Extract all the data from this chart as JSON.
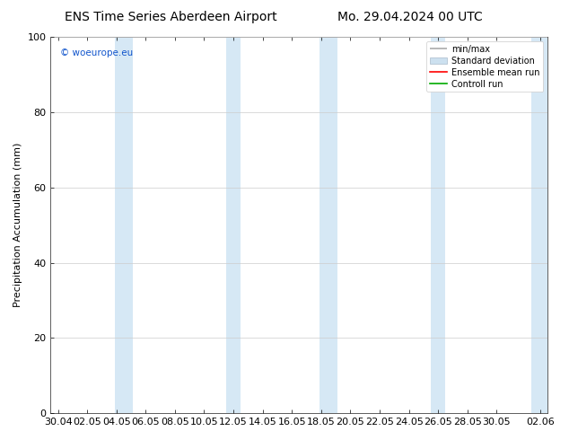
{
  "title_left": "ENS Time Series Aberdeen Airport",
  "title_right": "Mo. 29.04.2024 00 UTC",
  "ylabel": "Precipitation Accumulation (mm)",
  "watermark": "© woeurope.eu",
  "ylim": [
    0,
    100
  ],
  "yticks": [
    0,
    20,
    40,
    60,
    80,
    100
  ],
  "x_labels": [
    "30.04",
    "02.05",
    "04.05",
    "06.05",
    "08.05",
    "10.05",
    "12.05",
    "14.05",
    "16.05",
    "18.05",
    "20.05",
    "22.05",
    "24.05",
    "26.05",
    "28.05",
    "30.05",
    "02.06"
  ],
  "x_values": [
    0,
    2,
    4,
    6,
    8,
    10,
    12,
    14,
    16,
    18,
    20,
    22,
    24,
    26,
    28,
    30,
    33
  ],
  "band_centers": [
    4.5,
    12.0,
    18.5,
    26.0,
    33.0
  ],
  "band_widths": [
    1.2,
    1.0,
    1.2,
    1.0,
    1.2
  ],
  "band_color": "#d6e8f5",
  "background_color": "#ffffff",
  "legend_items": [
    "min/max",
    "Standard deviation",
    "Ensemble mean run",
    "Controll run"
  ],
  "grid_color": "#cccccc",
  "title_fontsize": 10,
  "axis_fontsize": 8,
  "tick_fontsize": 8
}
